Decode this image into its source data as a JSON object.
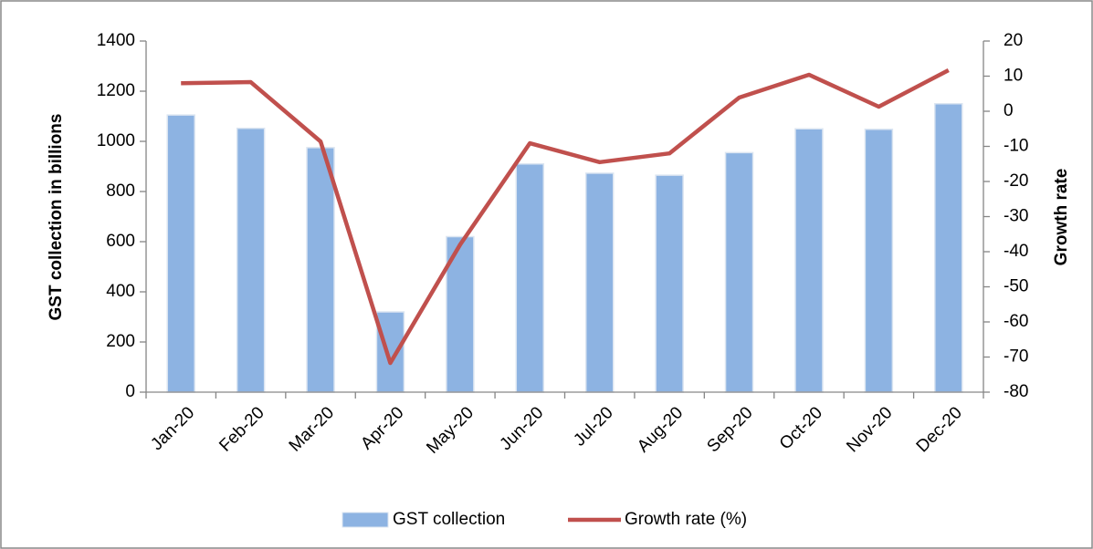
{
  "chart_data": {
    "type": "bar",
    "categories": [
      "Jan-20",
      "Feb-20",
      "Mar-20",
      "Apr-20",
      "May-20",
      "Jun-20",
      "Jul-20",
      "Aug-20",
      "Sep-20",
      "Oct-20",
      "Nov-20",
      "Dec-20"
    ],
    "series": [
      {
        "name": "GST collection",
        "type": "bar",
        "color": "#8db3e2",
        "values": [
          1105,
          1052,
          975,
          320,
          620,
          910,
          873,
          865,
          955,
          1050,
          1048,
          1150
        ]
      },
      {
        "name": "Growth rate (%)",
        "type": "line",
        "axis": "y2",
        "color": "#c0504d",
        "values": [
          8,
          8.3,
          -8.6,
          -71.7,
          -38,
          -9.1,
          -14.5,
          -12,
          3.9,
          10.4,
          1.3,
          11.7
        ]
      }
    ],
    "y_label": "GST collection in billions",
    "y2_label": "Growth rate",
    "ylim": [
      0,
      1400
    ],
    "yticks": [
      0,
      200,
      400,
      600,
      800,
      1000,
      1200,
      1400
    ],
    "y2lim": [
      -80,
      20
    ],
    "y2ticks": [
      -80,
      -70,
      -60,
      -50,
      -40,
      -30,
      -20,
      -10,
      0,
      10,
      20
    ],
    "legend": "bottom"
  }
}
